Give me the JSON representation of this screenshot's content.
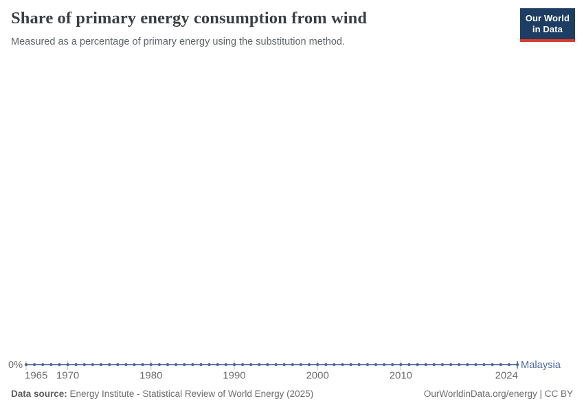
{
  "logo": {
    "line1": "Our World",
    "line2": "in Data",
    "bg_color": "#1d3d63",
    "accent_color": "#d93a2b"
  },
  "footer": {
    "source_label": "Data source:",
    "source_text": " Energy Institute - Statistical Review of World Energy (2025)",
    "link": "OurWorldinData.org/energy | CC BY"
  },
  "chart_data": {
    "type": "line",
    "title": "Share of primary energy consumption from wind",
    "subtitle": "Measured as a percentage of primary energy using the substitution method.",
    "entity": "Malaysia",
    "unit": "%",
    "xlabel": "",
    "ylabel": "",
    "grid": false,
    "legend_position": "end-of-line",
    "ylim": [
      0,
      1
    ],
    "x": [
      1965,
      1966,
      1967,
      1968,
      1969,
      1970,
      1971,
      1972,
      1973,
      1974,
      1975,
      1976,
      1977,
      1978,
      1979,
      1980,
      1981,
      1982,
      1983,
      1984,
      1985,
      1986,
      1987,
      1988,
      1989,
      1990,
      1991,
      1992,
      1993,
      1994,
      1995,
      1996,
      1997,
      1998,
      1999,
      2000,
      2001,
      2002,
      2003,
      2004,
      2005,
      2006,
      2007,
      2008,
      2009,
      2010,
      2011,
      2012,
      2013,
      2014,
      2015,
      2016,
      2017,
      2018,
      2019,
      2020,
      2021,
      2022,
      2023,
      2024
    ],
    "series": [
      {
        "name": "Malaysia",
        "color": "#4c6a9c",
        "values": [
          0,
          0,
          0,
          0,
          0,
          0,
          0,
          0,
          0,
          0,
          0,
          0,
          0,
          0,
          0,
          0,
          0,
          0,
          0,
          0,
          0,
          0,
          0,
          0,
          0,
          0,
          0,
          0,
          0,
          0,
          0,
          0,
          0,
          0,
          0,
          0,
          0,
          0,
          0,
          0,
          0,
          0,
          0,
          0,
          0,
          0,
          0,
          0,
          0,
          0,
          0,
          0,
          0,
          0,
          0,
          0,
          0,
          0,
          0,
          0
        ]
      }
    ],
    "x_tick_labels": [
      "1965",
      "1970",
      "1980",
      "1990",
      "2000",
      "2010",
      "2024"
    ],
    "y_tick_labels": [
      "0%"
    ],
    "axis_label_color": "#6e6e6e",
    "tick_color": "#b7c0ca"
  }
}
